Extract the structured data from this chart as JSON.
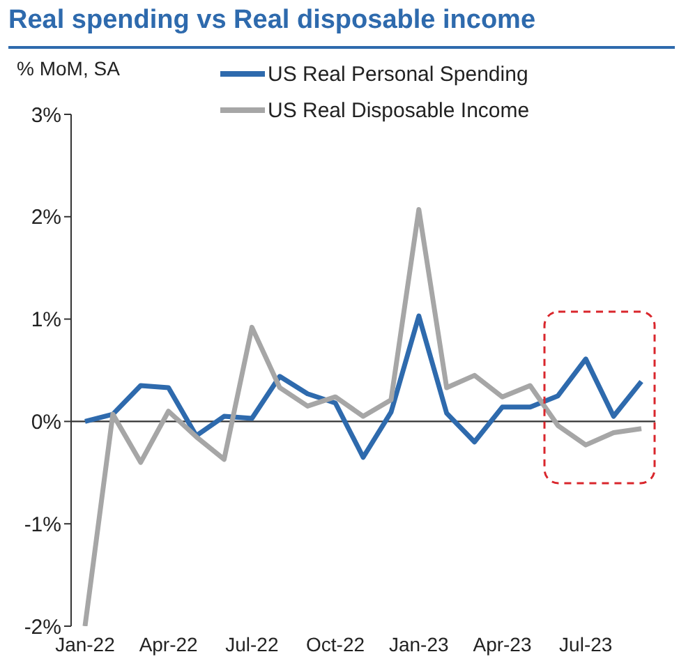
{
  "chart_data": {
    "type": "line",
    "title": "Real spending vs Real disposable income",
    "ylabel": "% MoM, SA",
    "categories": [
      "Jan-22",
      null,
      null,
      "Apr-22",
      null,
      null,
      "Jul-22",
      null,
      null,
      "Oct-22",
      null,
      null,
      "Jan-23",
      null,
      null,
      "Apr-23",
      null,
      null,
      "Jul-23",
      null,
      null
    ],
    "series": [
      {
        "name": "US Real Personal Spending",
        "color": "#2e6aad",
        "values": [
          0.0,
          0.07,
          0.35,
          0.33,
          -0.14,
          0.05,
          0.03,
          0.44,
          0.27,
          0.18,
          -0.35,
          0.09,
          1.03,
          0.08,
          -0.2,
          0.14,
          0.14,
          0.25,
          0.61,
          0.05,
          0.39
        ]
      },
      {
        "name": "US Real Disposable Income",
        "color": "#a6a6a6",
        "values": [
          -2.0,
          0.07,
          -0.4,
          0.1,
          -0.15,
          -0.37,
          0.92,
          0.33,
          0.15,
          0.24,
          0.05,
          0.21,
          2.07,
          0.33,
          0.45,
          0.24,
          0.35,
          -0.04,
          -0.23,
          -0.11,
          -0.07
        ]
      }
    ],
    "ylim": [
      -2,
      3
    ],
    "yticks": [
      {
        "value": -2,
        "label": "-2%"
      },
      {
        "value": -1,
        "label": "-1%"
      },
      {
        "value": 0,
        "label": "0%"
      },
      {
        "value": 1,
        "label": "1%"
      },
      {
        "value": 2,
        "label": "2%"
      },
      {
        "value": 3,
        "label": "3%"
      }
    ],
    "legend": "top",
    "marker": "none",
    "line_style": "solid"
  }
}
